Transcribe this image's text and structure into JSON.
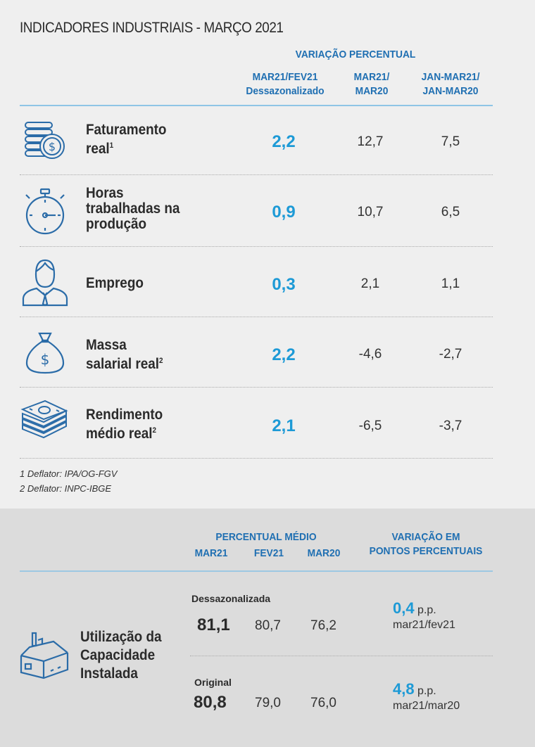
{
  "title": "INDICADORES INDUSTRIAIS - MARÇO 2021",
  "header": {
    "group_label": "VARIAÇÃO PERCENTUAL",
    "col1_line1": "MAR21/FEV21",
    "col1_line2": "Dessazonalizado",
    "col2_line1": "MAR21/",
    "col2_line2": "MAR20",
    "col3_line1": "JAN-MAR21/",
    "col3_line2": "JAN-MAR20"
  },
  "rows": [
    {
      "icon": "coins-dollar-icon",
      "label_line1": "Faturamento",
      "label_line2": "real",
      "sup": "1",
      "label_line3": "",
      "v1": "2,2",
      "v2": "12,7",
      "v3": "7,5"
    },
    {
      "icon": "stopwatch-icon",
      "label_line1": "Horas",
      "label_line2": "trabalhadas na",
      "sup": "",
      "label_line3": "produção",
      "v1": "0,9",
      "v2": "10,7",
      "v3": "6,5"
    },
    {
      "icon": "person-icon",
      "label_line1": "Emprego",
      "label_line2": "",
      "sup": "",
      "label_line3": "",
      "v1": "0,3",
      "v2": "2,1",
      "v3": "1,1"
    },
    {
      "icon": "money-bag-icon",
      "label_line1": "Massa",
      "label_line2": "salarial real",
      "sup": "2",
      "label_line3": "",
      "v1": "2,2",
      "v2": "-4,6",
      "v3": "-2,7"
    },
    {
      "icon": "banknotes-icon",
      "label_line1": "Rendimento",
      "label_line2": "médio real",
      "sup": "2",
      "label_line3": "",
      "v1": "2,1",
      "v2": "-6,5",
      "v3": "-3,7"
    }
  ],
  "notes": [
    "1 Deflator: IPA/OG-FGV",
    "2 Deflator: INPC-IBGE"
  ],
  "capacity": {
    "hdr_avg": "PERCENTUAL MÉDIO",
    "col_mar21": "MAR21",
    "col_fev21": "FEV21",
    "col_mar20": "MAR20",
    "hdr_var_line1": "VARIAÇÃO EM",
    "hdr_var_line2": "PONTOS PERCENTUAIS",
    "label_line1": "Utilização da",
    "label_line2": "Capacidade",
    "label_line3": "Instalada",
    "icon": "factory-icon",
    "seasonal": {
      "label": "Dessazonalizada",
      "mar21": "81,1",
      "fev21": "80,7",
      "mar20": "76,2",
      "pp": "0,4",
      "pp_unit": "p.p.",
      "pp_ref": "mar21/fev21"
    },
    "original": {
      "label": "Original",
      "mar21": "80,8",
      "fev21": "79,0",
      "mar20": "76,0",
      "pp": "4,8",
      "pp_unit": "p.p.",
      "pp_ref": "mar21/mar20"
    }
  },
  "colors": {
    "accent": "#1d9ad6",
    "header_blue": "#1f6fb2",
    "icon_blue": "#2b6ca8"
  }
}
